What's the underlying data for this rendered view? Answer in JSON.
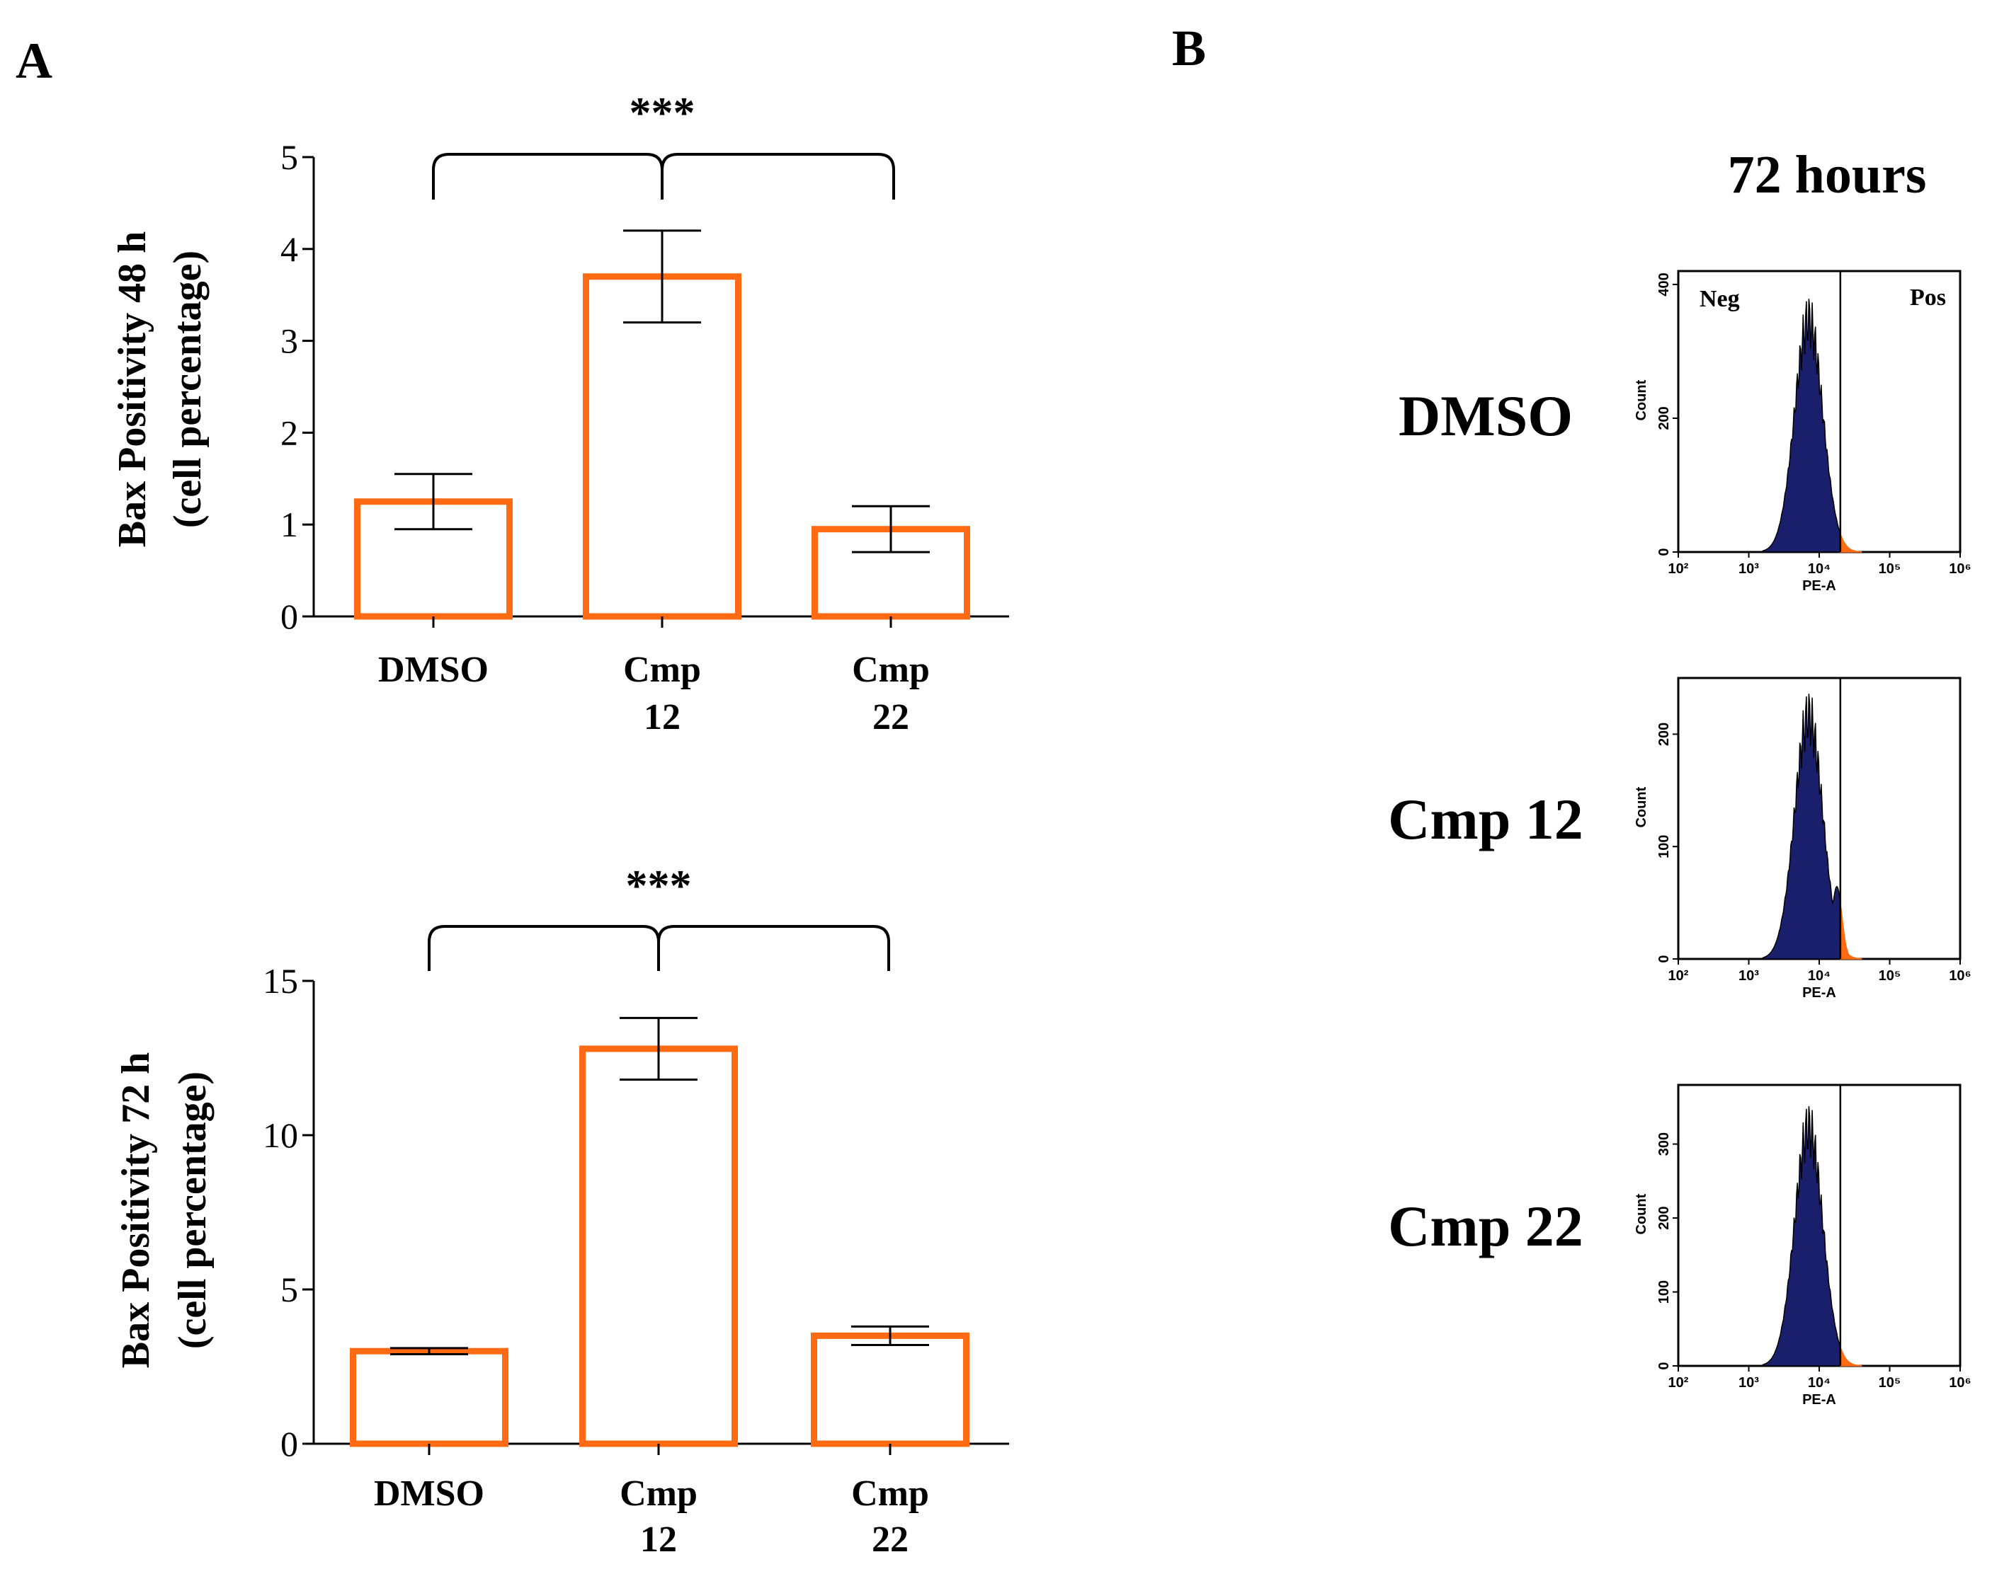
{
  "panels": {
    "A": "A",
    "B": "B"
  },
  "colors": {
    "bar": "#ff6a13",
    "axis": "#000000",
    "hist_fill": "#1a1f6b",
    "hist_pos": "#ff6a13"
  },
  "chart_data": [
    {
      "type": "bar",
      "title": "",
      "ylabel_line1": "Bax Positivity 48 h",
      "ylabel_line2": "(cell percentage)",
      "ylim": [
        0,
        5
      ],
      "yticks": [
        "0",
        "1",
        "2",
        "3",
        "4",
        "5"
      ],
      "categories": [
        {
          "line1": "DMSO",
          "line2": ""
        },
        {
          "line1": "Cmp",
          "line2": "12"
        },
        {
          "line1": "Cmp",
          "line2": "22"
        }
      ],
      "values": [
        1.25,
        3.7,
        0.95
      ],
      "errors": [
        0.3,
        0.5,
        0.25
      ],
      "significance": "***"
    },
    {
      "type": "bar",
      "title": "",
      "ylabel_line1": "Bax Positivity 72 h",
      "ylabel_line2": "(cell percentage)",
      "ylim": [
        0,
        15
      ],
      "yticks": [
        "0",
        "5",
        "10",
        "15"
      ],
      "categories": [
        {
          "line1": "DMSO",
          "line2": ""
        },
        {
          "line1": "Cmp",
          "line2": "12"
        },
        {
          "line1": "Cmp",
          "line2": "22"
        }
      ],
      "values": [
        3.0,
        12.8,
        3.5
      ],
      "errors": [
        0.1,
        1.0,
        0.3
      ],
      "significance": "***"
    }
  ],
  "flow": {
    "title": "72 hours",
    "x_axis_label": "PE-A",
    "y_axis_label": "Count",
    "x_ticks": [
      "10²",
      "10³",
      "10⁴",
      "10⁵",
      "10⁶"
    ],
    "gate_neg": "Neg",
    "gate_pos": "Pos",
    "samples": [
      {
        "label": "DMSO",
        "yticks": [
          "0",
          "200",
          "400"
        ],
        "ymax": 420,
        "peak": 345,
        "pos_tail": 0.05
      },
      {
        "label": "Cmp 12",
        "yticks": [
          "0",
          "100",
          "200"
        ],
        "ymax": 250,
        "peak": 215,
        "pos_tail": 0.3
      },
      {
        "label": "Cmp 22",
        "yticks": [
          "0",
          "100",
          "200",
          "300"
        ],
        "ymax": 380,
        "peak": 320,
        "pos_tail": 0.08
      }
    ]
  }
}
